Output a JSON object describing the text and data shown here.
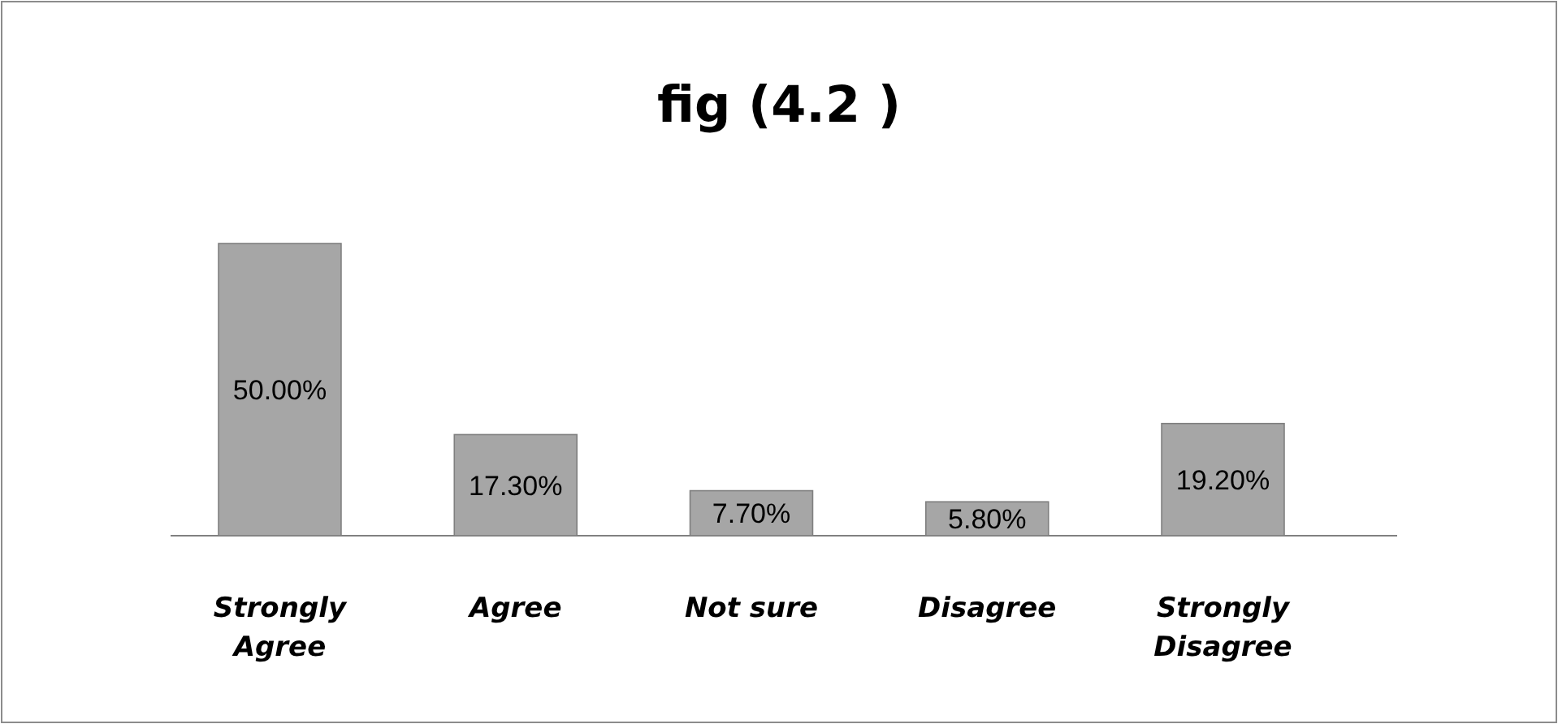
{
  "chart_data": {
    "type": "bar",
    "title": "fig (4.2 )",
    "categories": [
      "Strongly Agree",
      "Agree",
      "Not sure",
      "Disagree",
      "Strongly Disagree"
    ],
    "values": [
      50,
      17.3,
      7.7,
      5.8,
      19.2
    ],
    "value_labels": [
      "50.00%",
      "17.30%",
      "7.70%",
      "5.80%",
      "19.20%"
    ],
    "color": "#a6a6a6"
  }
}
